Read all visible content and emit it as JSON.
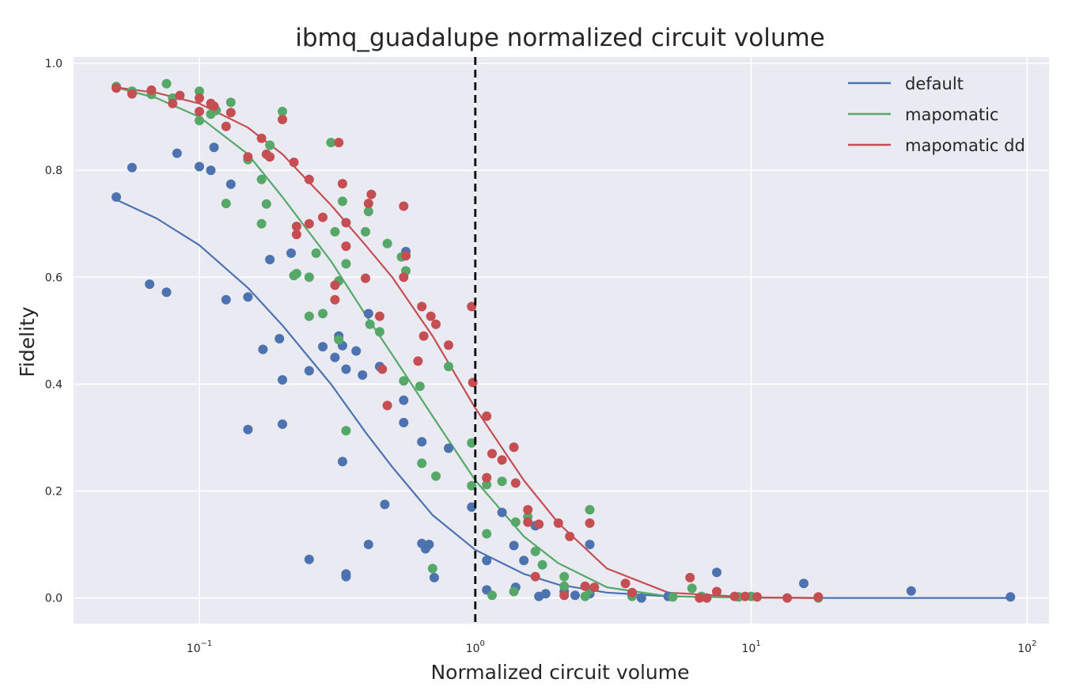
{
  "chart_data": {
    "type": "scatter",
    "title": "ibmq_guadalupe normalized circuit volume",
    "xlabel": "Normalized circuit volume",
    "ylabel": "Fidelity",
    "xscale": "log",
    "xlim": [
      0.035,
      120
    ],
    "ylim": [
      -0.048,
      1.012
    ],
    "xticks": [
      {
        "value": 0.1,
        "base": "10",
        "exp": "−1"
      },
      {
        "value": 1,
        "base": "10",
        "exp": "0"
      },
      {
        "value": 10,
        "base": "10",
        "exp": "1"
      },
      {
        "value": 100,
        "base": "10",
        "exp": "2"
      }
    ],
    "yticks": [
      "0.0",
      "0.2",
      "0.4",
      "0.6",
      "0.8",
      "1.0"
    ],
    "reference_line": {
      "x": 1,
      "style": "dashed",
      "color": "#000000"
    },
    "grid": true,
    "legend_position": "top-right",
    "colors": {
      "background": "#EAEAF2",
      "grid": "#ffffff"
    },
    "series": [
      {
        "name": "default",
        "color": "#4C72B0",
        "curve": [
          [
            0.05,
            0.745
          ],
          [
            0.07,
            0.71
          ],
          [
            0.1,
            0.66
          ],
          [
            0.15,
            0.58
          ],
          [
            0.2,
            0.51
          ],
          [
            0.3,
            0.4
          ],
          [
            0.4,
            0.31
          ],
          [
            0.5,
            0.245
          ],
          [
            0.7,
            0.155
          ],
          [
            1.0,
            0.09
          ],
          [
            1.5,
            0.045
          ],
          [
            2,
            0.025
          ],
          [
            3,
            0.01
          ],
          [
            5,
            0.003
          ],
          [
            10,
            0.0005
          ],
          [
            20,
            0.0
          ],
          [
            90,
            0.0
          ]
        ],
        "points": [
          [
            0.05,
            0.75
          ],
          [
            0.057,
            0.805
          ],
          [
            0.066,
            0.587
          ],
          [
            0.076,
            0.572
          ],
          [
            0.083,
            0.832
          ],
          [
            0.1,
            0.807
          ],
          [
            0.11,
            0.8
          ],
          [
            0.113,
            0.843
          ],
          [
            0.125,
            0.558
          ],
          [
            0.13,
            0.774
          ],
          [
            0.15,
            0.563
          ],
          [
            0.15,
            0.315
          ],
          [
            0.17,
            0.465
          ],
          [
            0.18,
            0.633
          ],
          [
            0.195,
            0.485
          ],
          [
            0.2,
            0.408
          ],
          [
            0.2,
            0.325
          ],
          [
            0.215,
            0.645
          ],
          [
            0.25,
            0.425
          ],
          [
            0.25,
            0.072
          ],
          [
            0.28,
            0.47
          ],
          [
            0.31,
            0.45
          ],
          [
            0.32,
            0.49
          ],
          [
            0.33,
            0.472
          ],
          [
            0.33,
            0.255
          ],
          [
            0.34,
            0.428
          ],
          [
            0.34,
            0.045
          ],
          [
            0.34,
            0.04
          ],
          [
            0.37,
            0.462
          ],
          [
            0.39,
            0.417
          ],
          [
            0.41,
            0.1
          ],
          [
            0.41,
            0.532
          ],
          [
            0.45,
            0.433
          ],
          [
            0.47,
            0.175
          ],
          [
            0.55,
            0.37
          ],
          [
            0.55,
            0.328
          ],
          [
            0.56,
            0.648
          ],
          [
            0.64,
            0.292
          ],
          [
            0.64,
            0.102
          ],
          [
            0.66,
            0.092
          ],
          [
            0.68,
            0.1
          ],
          [
            0.71,
            0.038
          ],
          [
            0.8,
            0.28
          ],
          [
            0.97,
            0.17
          ],
          [
            1.1,
            0.015
          ],
          [
            1.1,
            0.07
          ],
          [
            1.25,
            0.16
          ],
          [
            1.38,
            0.098
          ],
          [
            1.4,
            0.02
          ],
          [
            1.5,
            0.07
          ],
          [
            1.65,
            0.135
          ],
          [
            1.7,
            0.003
          ],
          [
            1.8,
            0.008
          ],
          [
            2.1,
            0.012
          ],
          [
            2.3,
            0.005
          ],
          [
            2.6,
            0.1
          ],
          [
            2.6,
            0.008
          ],
          [
            3.7,
            0.004
          ],
          [
            4.0,
            0.0
          ],
          [
            5.0,
            0.003
          ],
          [
            7.5,
            0.048
          ],
          [
            9.0,
            0.002
          ],
          [
            15.5,
            0.027
          ],
          [
            38,
            0.013
          ],
          [
            87,
            0.002
          ]
        ]
      },
      {
        "name": "mapomatic",
        "color": "#55A868",
        "curve": [
          [
            0.05,
            0.955
          ],
          [
            0.07,
            0.935
          ],
          [
            0.1,
            0.9
          ],
          [
            0.15,
            0.83
          ],
          [
            0.2,
            0.75
          ],
          [
            0.3,
            0.63
          ],
          [
            0.4,
            0.53
          ],
          [
            0.5,
            0.455
          ],
          [
            0.7,
            0.34
          ],
          [
            1.0,
            0.22
          ],
          [
            1.5,
            0.115
          ],
          [
            2,
            0.065
          ],
          [
            3,
            0.02
          ],
          [
            5,
            0.003
          ],
          [
            10,
            0.0005
          ],
          [
            17,
            0.0
          ]
        ],
        "points": [
          [
            0.05,
            0.957
          ],
          [
            0.057,
            0.948
          ],
          [
            0.067,
            0.942
          ],
          [
            0.076,
            0.962
          ],
          [
            0.08,
            0.935
          ],
          [
            0.1,
            0.948
          ],
          [
            0.1,
            0.893
          ],
          [
            0.11,
            0.905
          ],
          [
            0.115,
            0.912
          ],
          [
            0.125,
            0.738
          ],
          [
            0.13,
            0.927
          ],
          [
            0.15,
            0.82
          ],
          [
            0.168,
            0.783
          ],
          [
            0.168,
            0.7
          ],
          [
            0.175,
            0.737
          ],
          [
            0.18,
            0.847
          ],
          [
            0.2,
            0.91
          ],
          [
            0.22,
            0.603
          ],
          [
            0.225,
            0.607
          ],
          [
            0.25,
            0.527
          ],
          [
            0.25,
            0.6
          ],
          [
            0.265,
            0.645
          ],
          [
            0.28,
            0.532
          ],
          [
            0.3,
            0.852
          ],
          [
            0.31,
            0.685
          ],
          [
            0.32,
            0.593
          ],
          [
            0.32,
            0.483
          ],
          [
            0.33,
            0.742
          ],
          [
            0.34,
            0.625
          ],
          [
            0.34,
            0.313
          ],
          [
            0.4,
            0.685
          ],
          [
            0.41,
            0.723
          ],
          [
            0.415,
            0.512
          ],
          [
            0.45,
            0.498
          ],
          [
            0.48,
            0.663
          ],
          [
            0.54,
            0.638
          ],
          [
            0.55,
            0.406
          ],
          [
            0.56,
            0.612
          ],
          [
            0.63,
            0.396
          ],
          [
            0.64,
            0.252
          ],
          [
            0.7,
            0.055
          ],
          [
            0.72,
            0.228
          ],
          [
            0.8,
            0.433
          ],
          [
            0.97,
            0.29
          ],
          [
            0.97,
            0.21
          ],
          [
            1.1,
            0.212
          ],
          [
            1.1,
            0.12
          ],
          [
            1.15,
            0.005
          ],
          [
            1.25,
            0.218
          ],
          [
            1.38,
            0.012
          ],
          [
            1.4,
            0.142
          ],
          [
            1.55,
            0.152
          ],
          [
            1.65,
            0.087
          ],
          [
            1.75,
            0.062
          ],
          [
            2.1,
            0.04
          ],
          [
            2.1,
            0.022
          ],
          [
            2.5,
            0.003
          ],
          [
            2.6,
            0.165
          ],
          [
            2.6,
            0.015
          ],
          [
            3.7,
            0.003
          ],
          [
            5.2,
            0.002
          ],
          [
            6.1,
            0.018
          ],
          [
            6.6,
            0.003
          ],
          [
            9.0,
            0.002
          ],
          [
            10,
            0.003
          ],
          [
            17.5,
            0.0
          ]
        ]
      },
      {
        "name": "mapomatic dd",
        "color": "#C44E52",
        "curve": [
          [
            0.05,
            0.955
          ],
          [
            0.07,
            0.945
          ],
          [
            0.1,
            0.925
          ],
          [
            0.15,
            0.88
          ],
          [
            0.2,
            0.83
          ],
          [
            0.3,
            0.735
          ],
          [
            0.4,
            0.66
          ],
          [
            0.5,
            0.6
          ],
          [
            0.7,
            0.49
          ],
          [
            1.0,
            0.355
          ],
          [
            1.5,
            0.22
          ],
          [
            2,
            0.14
          ],
          [
            3,
            0.055
          ],
          [
            5,
            0.01
          ],
          [
            10,
            0.001
          ],
          [
            17,
            0.0
          ]
        ],
        "points": [
          [
            0.05,
            0.954
          ],
          [
            0.057,
            0.943
          ],
          [
            0.067,
            0.95
          ],
          [
            0.08,
            0.925
          ],
          [
            0.085,
            0.94
          ],
          [
            0.1,
            0.935
          ],
          [
            0.1,
            0.91
          ],
          [
            0.11,
            0.925
          ],
          [
            0.113,
            0.92
          ],
          [
            0.125,
            0.882
          ],
          [
            0.13,
            0.908
          ],
          [
            0.15,
            0.825
          ],
          [
            0.168,
            0.86
          ],
          [
            0.175,
            0.83
          ],
          [
            0.18,
            0.825
          ],
          [
            0.2,
            0.895
          ],
          [
            0.22,
            0.815
          ],
          [
            0.225,
            0.695
          ],
          [
            0.225,
            0.68
          ],
          [
            0.25,
            0.783
          ],
          [
            0.25,
            0.7
          ],
          [
            0.28,
            0.712
          ],
          [
            0.31,
            0.558
          ],
          [
            0.31,
            0.585
          ],
          [
            0.32,
            0.852
          ],
          [
            0.33,
            0.775
          ],
          [
            0.34,
            0.702
          ],
          [
            0.34,
            0.658
          ],
          [
            0.4,
            0.598
          ],
          [
            0.41,
            0.738
          ],
          [
            0.42,
            0.755
          ],
          [
            0.45,
            0.527
          ],
          [
            0.46,
            0.428
          ],
          [
            0.48,
            0.36
          ],
          [
            0.55,
            0.733
          ],
          [
            0.55,
            0.6
          ],
          [
            0.56,
            0.64
          ],
          [
            0.62,
            0.443
          ],
          [
            0.64,
            0.545
          ],
          [
            0.65,
            0.49
          ],
          [
            0.69,
            0.527
          ],
          [
            0.72,
            0.512
          ],
          [
            0.8,
            0.473
          ],
          [
            0.97,
            0.545
          ],
          [
            0.98,
            0.403
          ],
          [
            1.1,
            0.34
          ],
          [
            1.1,
            0.225
          ],
          [
            1.15,
            0.27
          ],
          [
            1.25,
            0.258
          ],
          [
            1.38,
            0.282
          ],
          [
            1.4,
            0.215
          ],
          [
            1.55,
            0.165
          ],
          [
            1.55,
            0.142
          ],
          [
            1.65,
            0.04
          ],
          [
            1.7,
            0.138
          ],
          [
            2.0,
            0.14
          ],
          [
            2.1,
            0.005
          ],
          [
            2.2,
            0.115
          ],
          [
            2.5,
            0.022
          ],
          [
            2.6,
            0.14
          ],
          [
            2.7,
            0.02
          ],
          [
            3.5,
            0.027
          ],
          [
            3.7,
            0.01
          ],
          [
            6.0,
            0.038
          ],
          [
            6.5,
            0.0
          ],
          [
            6.9,
            0.0
          ],
          [
            7.5,
            0.012
          ],
          [
            8.7,
            0.003
          ],
          [
            9.5,
            0.003
          ],
          [
            10.5,
            0.002
          ],
          [
            13.5,
            0.0
          ],
          [
            17.5,
            0.002
          ]
        ]
      }
    ]
  }
}
